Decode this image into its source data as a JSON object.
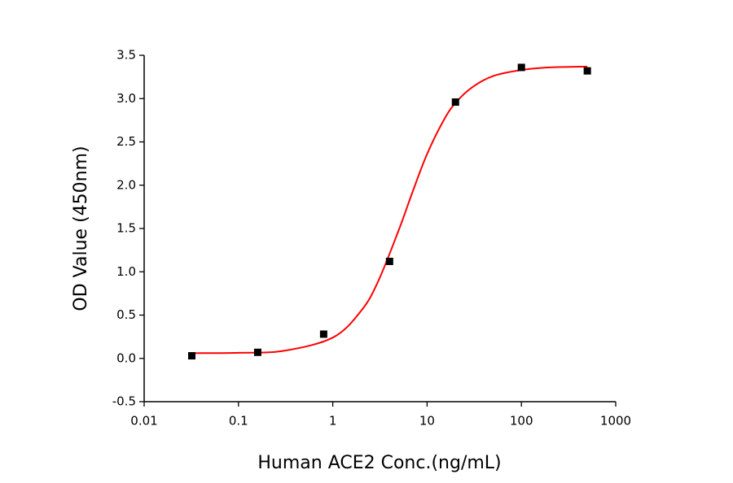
{
  "chart_data": {
    "type": "scatter",
    "x_label": "Human ACE2 Conc.(ng/mL)",
    "y_label": "OD Value (450nm)",
    "x_scale": "log",
    "xlim": [
      0.01,
      1000
    ],
    "xticks": [
      0.01,
      0.1,
      1,
      10,
      100,
      1000
    ],
    "ylim": [
      -0.5,
      3.5
    ],
    "yticks": [
      -0.5,
      {
        "value": 0,
        "label": "0.0"
      },
      0.5,
      {
        "value": 1,
        "label": "1.0"
      },
      1.5,
      {
        "value": 2,
        "label": "2.0"
      },
      2.5,
      {
        "value": 3,
        "label": "3.0"
      },
      3.5
    ],
    "series": [
      {
        "color": "#000000",
        "marker": "square",
        "x": [
          0.032,
          0.16,
          0.8,
          4,
          20,
          100,
          500
        ],
        "values": [
          0.03,
          0.07,
          0.28,
          1.12,
          2.96,
          3.36,
          3.32
        ]
      }
    ],
    "curve": {
      "color": "#ff0000",
      "x": [
        0.032,
        0.1,
        0.3,
        1,
        2,
        3,
        5,
        7,
        10,
        15,
        20,
        30,
        50,
        100,
        200,
        500
      ],
      "values": [
        0.06,
        0.065,
        0.087,
        0.24,
        0.55,
        0.88,
        1.48,
        1.92,
        2.36,
        2.75,
        2.95,
        3.13,
        3.26,
        3.33,
        3.36,
        3.37
      ]
    }
  }
}
